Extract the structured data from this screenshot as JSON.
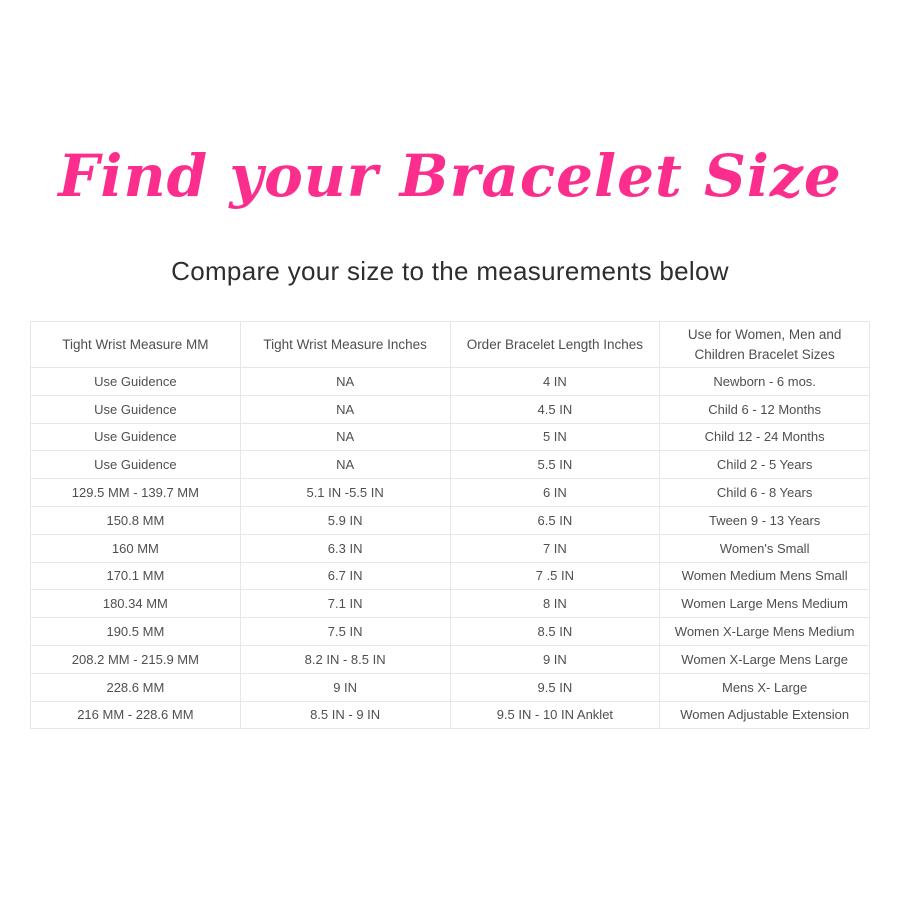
{
  "page": {
    "title": "Find your Bracelet Size",
    "subtitle": "Compare your size to the measurements below"
  },
  "colors": {
    "title_pink": "#fb2e8e",
    "subtitle_text": "#2e2e2e",
    "table_text": "#4f4f4f",
    "table_border": "#e7e7e7"
  },
  "table": {
    "headers": [
      "Tight Wrist Measure MM",
      "Tight Wrist Measure Inches",
      "Order Bracelet Length Inches",
      "Use for Women, Men and Children Bracelet Sizes"
    ],
    "rows": [
      [
        "Use Guidence",
        "NA",
        "4 IN",
        "Newborn - 6 mos."
      ],
      [
        "Use Guidence",
        "NA",
        "4.5 IN",
        "Child 6 - 12 Months"
      ],
      [
        "Use Guidence",
        "NA",
        "5 IN",
        "Child 12 - 24 Months"
      ],
      [
        "Use Guidence",
        "NA",
        "5.5 IN",
        "Child 2 - 5 Years"
      ],
      [
        "129.5 MM - 139.7 MM",
        "5.1 IN -5.5 IN",
        "6 IN",
        "Child 6 - 8 Years"
      ],
      [
        "150.8 MM",
        "5.9 IN",
        "6.5 IN",
        "Tween 9 - 13 Years"
      ],
      [
        "160 MM",
        "6.3 IN",
        "7 IN",
        "Women's Small"
      ],
      [
        "170.1 MM",
        "6.7 IN",
        "7 .5 IN",
        "Women Medium Mens Small"
      ],
      [
        "180.34 MM",
        "7.1 IN",
        "8 IN",
        "Women Large Mens Medium"
      ],
      [
        "190.5 MM",
        "7.5 IN",
        "8.5 IN",
        "Women X-Large Mens Medium"
      ],
      [
        "208.2 MM - 215.9 MM",
        "8.2 IN - 8.5 IN",
        "9 IN",
        "Women X-Large Mens Large"
      ],
      [
        "228.6 MM",
        "9 IN",
        "9.5 IN",
        "Mens X- Large"
      ],
      [
        "216 MM - 228.6 MM",
        "8.5 IN - 9 IN",
        "9.5 IN - 10 IN Anklet",
        "Women Adjustable Extension"
      ]
    ]
  }
}
